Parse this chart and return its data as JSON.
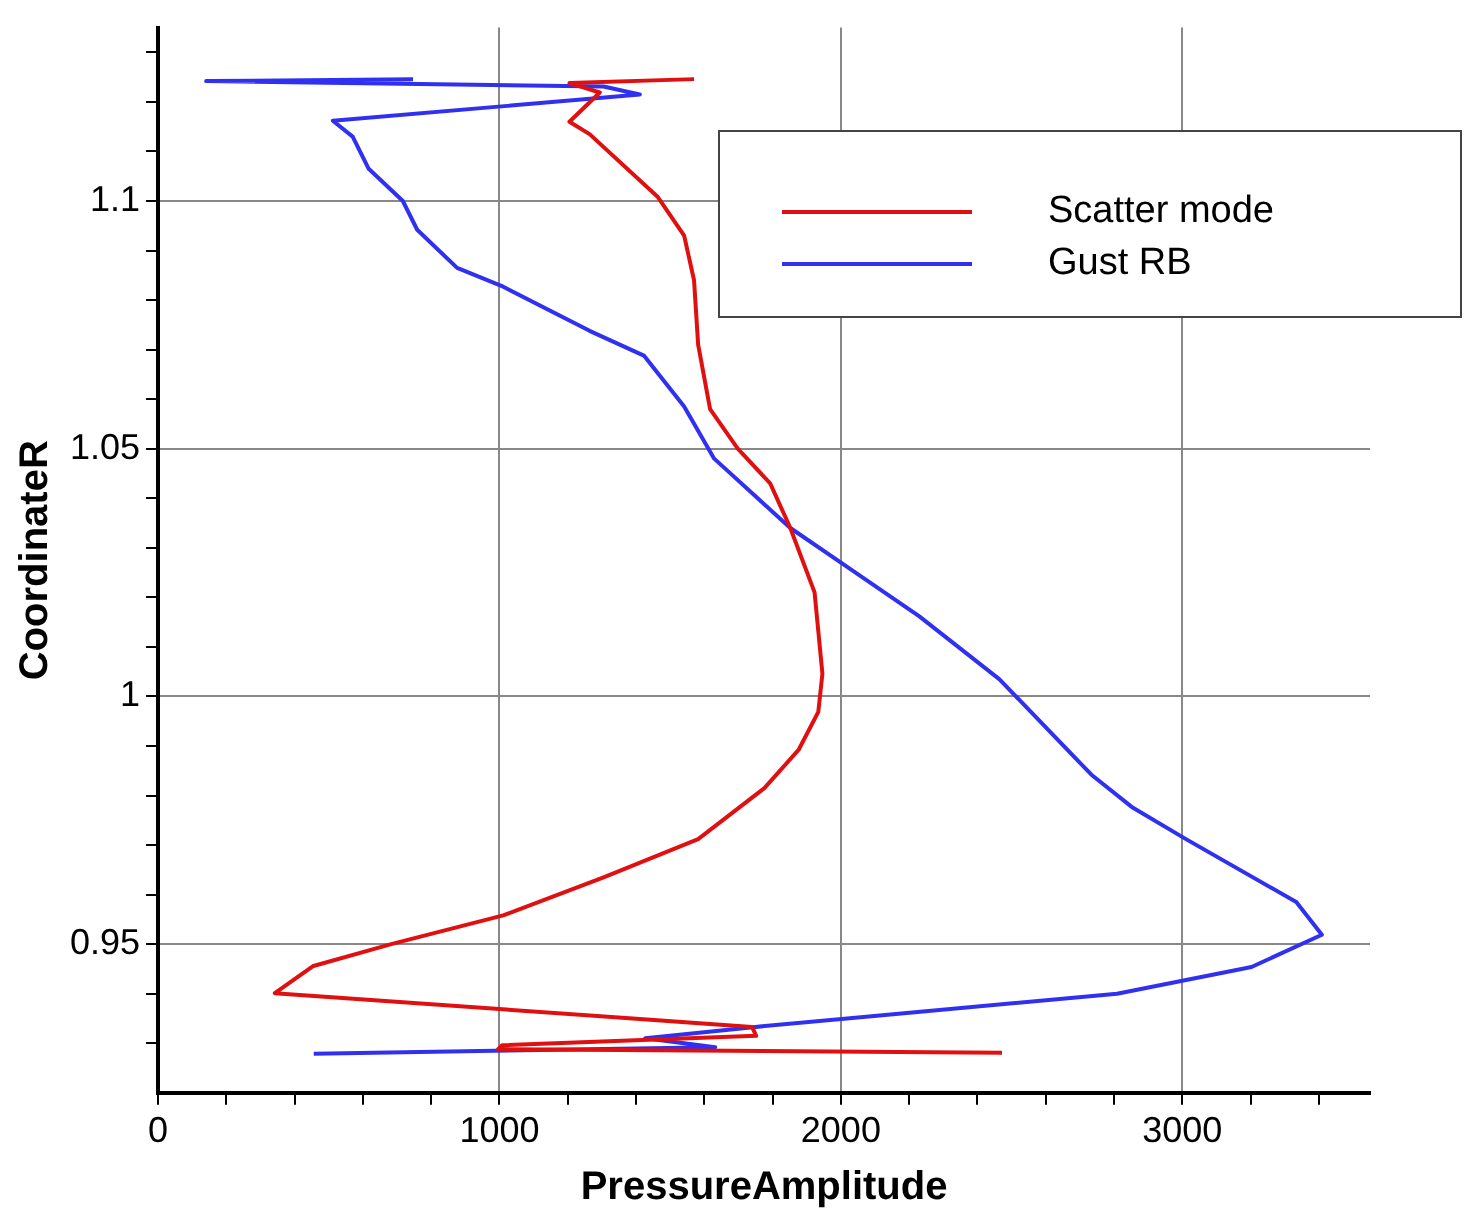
{
  "chart_data": {
    "type": "line",
    "xlabel": "PressureAmplitude",
    "ylabel": "CoordinateR",
    "xlim": [
      0,
      3550
    ],
    "ylim": [
      0.92,
      1.135
    ],
    "xticks": [
      0,
      {
        "value": 200,
        "label": null
      },
      {
        "value": 400,
        "label": null
      },
      {
        "value": 600,
        "label": null
      },
      {
        "value": 800,
        "label": null
      },
      1000,
      {
        "value": 1200,
        "label": null
      },
      {
        "value": 1400,
        "label": null
      },
      {
        "value": 1600,
        "label": null
      },
      {
        "value": 1800,
        "label": null
      },
      2000,
      {
        "value": 2200,
        "label": null
      },
      {
        "value": 2400,
        "label": null
      },
      {
        "value": 2600,
        "label": null
      },
      {
        "value": 2800,
        "label": null
      },
      3000,
      {
        "value": 3200,
        "label": null
      },
      {
        "value": 3400,
        "label": null
      }
    ],
    "yticks": [
      {
        "value": 0.93,
        "label": null
      },
      {
        "value": 0.94,
        "label": null
      },
      0.95,
      {
        "value": 0.96,
        "label": null
      },
      {
        "value": 0.97,
        "label": null
      },
      {
        "value": 0.98,
        "label": null
      },
      {
        "value": 0.99,
        "label": null
      },
      1,
      {
        "value": 1.01,
        "label": null
      },
      {
        "value": 1.02,
        "label": null
      },
      {
        "value": 1.03,
        "label": null
      },
      {
        "value": 1.04,
        "label": null
      },
      1.05,
      {
        "value": 1.06,
        "label": null
      },
      {
        "value": 1.07,
        "label": null
      },
      {
        "value": 1.08,
        "label": null
      },
      {
        "value": 1.09,
        "label": null
      },
      1.1,
      {
        "value": 1.11,
        "label": null
      },
      {
        "value": 1.12,
        "label": null
      },
      {
        "value": 1.13,
        "label": null
      }
    ],
    "grid": true,
    "legend": "top right",
    "marker": "none",
    "line_style": "solid",
    "series": [
      {
        "name": "Scatter mode",
        "color": "#e01010",
        "x": [
          1570,
          1205,
          1294,
          1205,
          1264,
          1464,
          1541,
          1570,
          1582,
          1617,
          1698,
          1793,
          1852,
          1923,
          1946,
          1934,
          1876,
          1776,
          1582,
          1305,
          1011,
          683,
          455,
          342,
          1740,
          1752,
          1008,
          996,
          2472
        ],
        "values": [
          1.1246,
          1.1238,
          1.1219,
          1.116,
          1.1135,
          1.1008,
          1.093,
          1.084,
          1.071,
          1.058,
          1.05,
          1.043,
          1.034,
          1.021,
          1.0046,
          0.9969,
          0.9892,
          0.9815,
          0.9712,
          0.9635,
          0.9558,
          0.95,
          0.9456,
          0.9401,
          0.9333,
          0.9315,
          0.9296,
          0.9288,
          0.9281
        ]
      },
      {
        "name": "Gust RB",
        "color": "#3030f0",
        "x": [
          747,
          141,
          1305,
          1411,
          1023,
          512,
          570,
          617,
          717,
          759,
          876,
          1011,
          1264,
          1423,
          1541,
          1629,
          1852,
          2011,
          2229,
          2464,
          2734,
          2852,
          3011,
          3334,
          3409,
          3203,
          2809,
          1750,
          1427,
          1632,
          456
        ],
        "values": [
          1.1246,
          1.1242,
          1.1231,
          1.1215,
          1.1192,
          1.1162,
          1.113,
          1.1065,
          1.1,
          1.0942,
          1.0865,
          1.0827,
          1.0738,
          1.0688,
          1.0585,
          1.048,
          1.034,
          1.0265,
          1.0162,
          1.0035,
          0.9842,
          0.9777,
          0.9712,
          0.9585,
          0.9519,
          0.9454,
          0.94,
          0.9333,
          0.931,
          0.9292,
          0.9279
        ]
      }
    ]
  }
}
